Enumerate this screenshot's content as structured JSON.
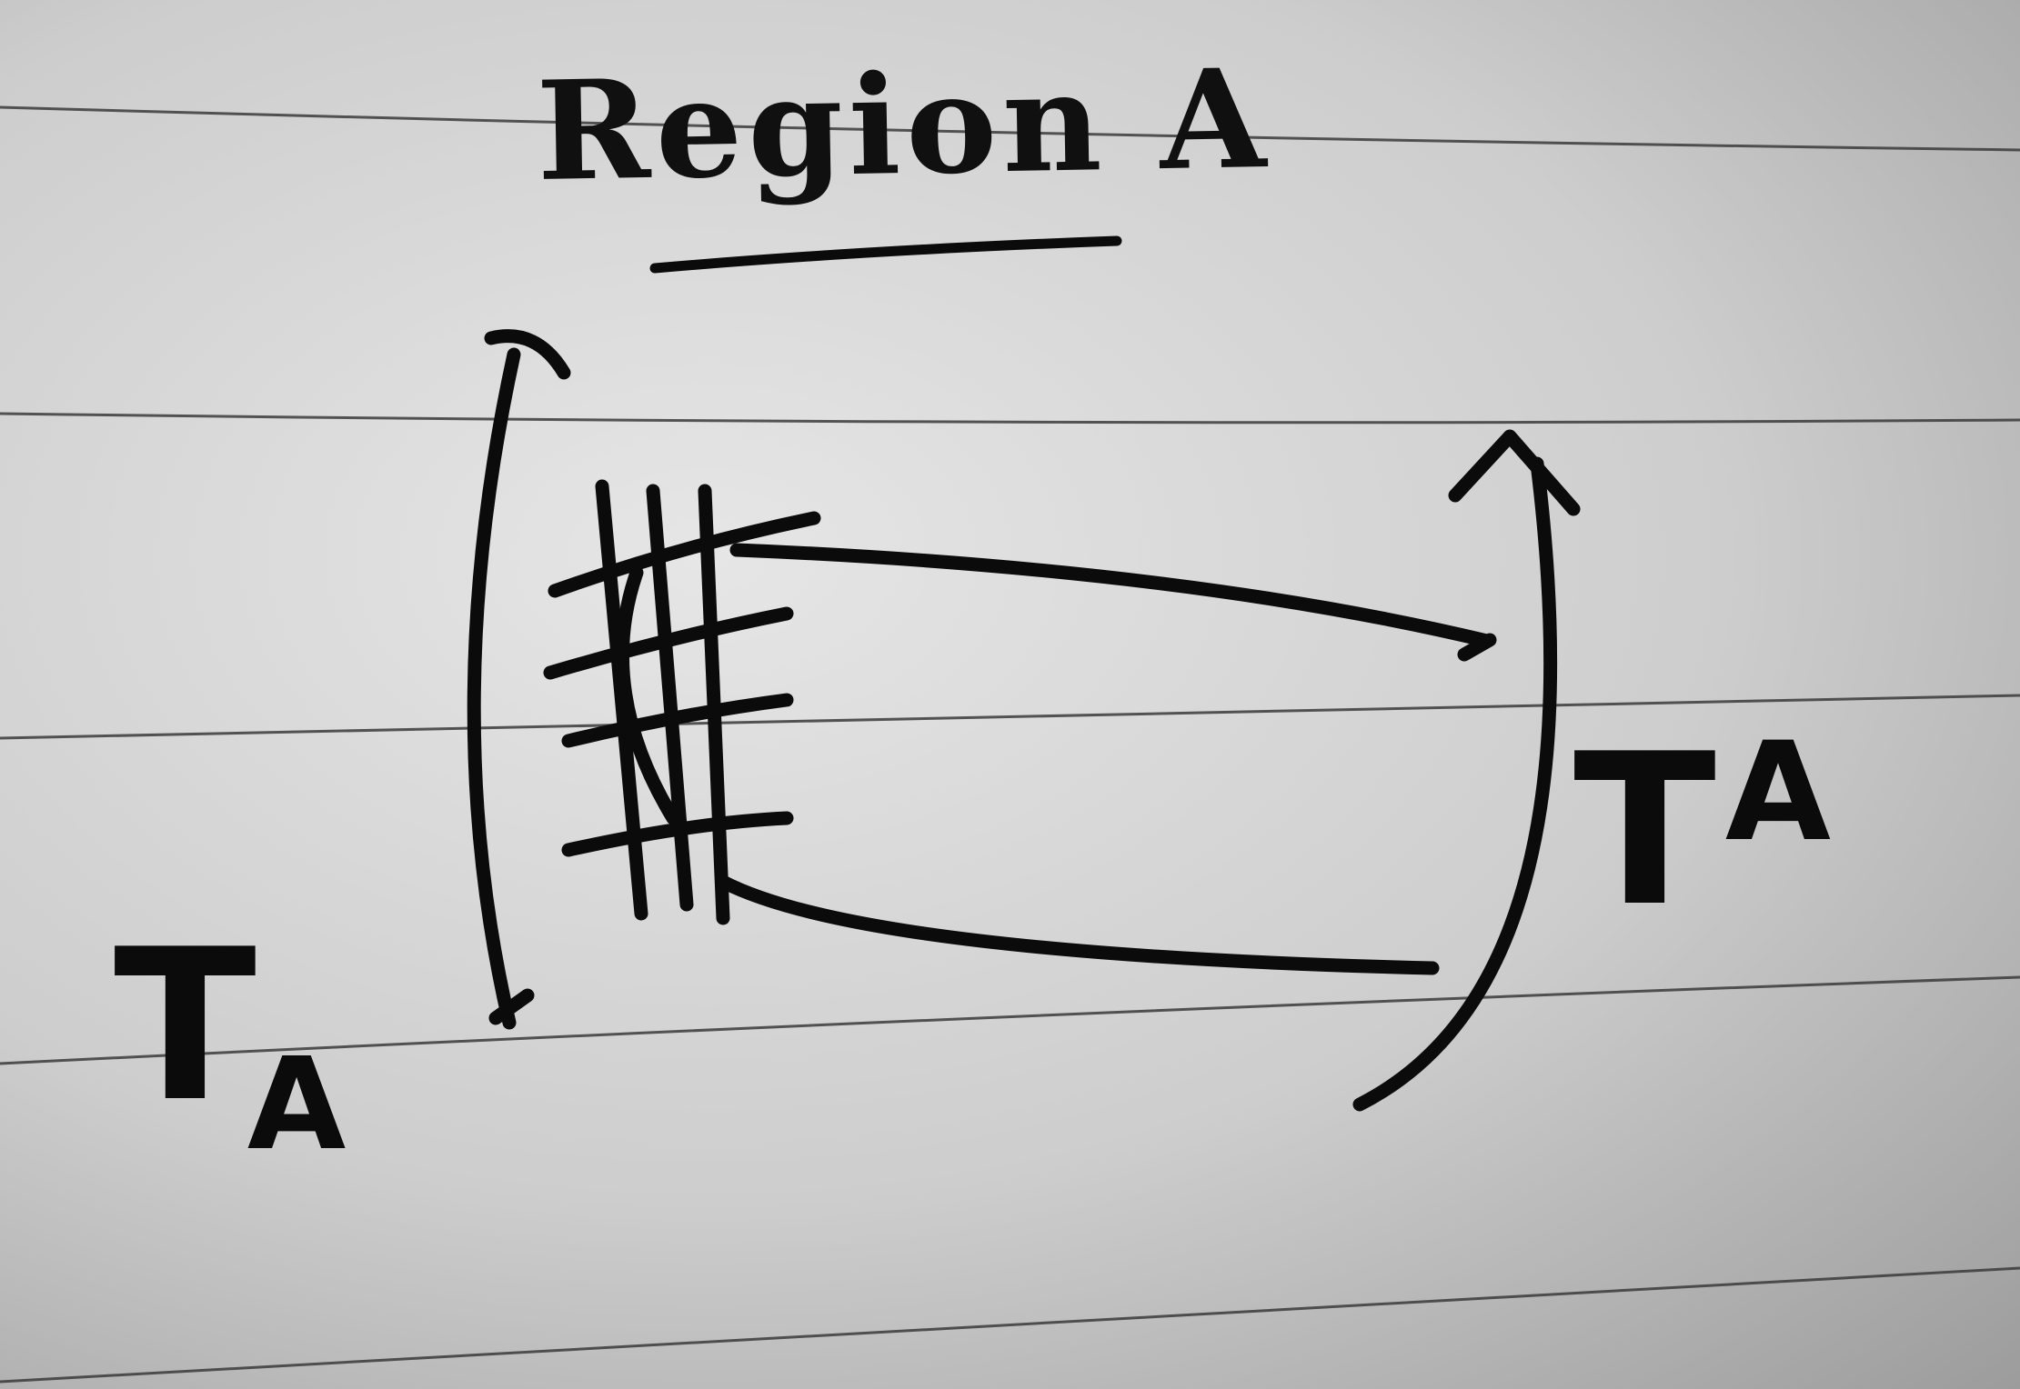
{
  "title": "Region A",
  "labels": {
    "left_main": "T",
    "left_sub": "A",
    "right_main": "T",
    "right_sup": "A"
  }
}
